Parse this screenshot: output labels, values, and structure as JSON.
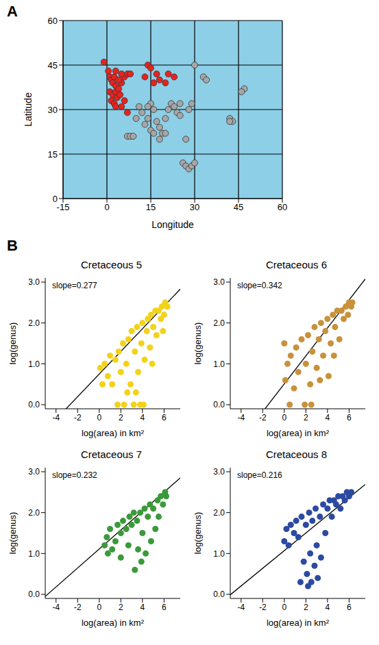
{
  "chart_data": [
    {
      "type": "scatter",
      "panel": "A",
      "xlabel": "Longitude",
      "ylabel": "Latitude",
      "xlim": [
        -15,
        60
      ],
      "ylim": [
        0,
        60
      ],
      "xticks": [
        -15,
        0,
        15,
        30,
        45,
        60
      ],
      "yticks": [
        0,
        15,
        30,
        45,
        60
      ],
      "grid": true,
      "series": [
        {
          "color": "#e8231e",
          "marker": "circle",
          "x": [
            -1,
            0.5,
            1,
            1.5,
            2,
            2.5,
            3,
            1,
            2,
            3,
            4,
            5,
            1.5,
            2.5,
            3.5,
            4.5,
            3,
            6,
            7,
            5,
            6,
            7,
            8,
            4,
            13,
            14,
            15,
            17,
            18,
            20,
            21,
            23,
            16,
            3,
            5
          ],
          "values": [
            46,
            43,
            41,
            40,
            39,
            41,
            38,
            36,
            35,
            36,
            37,
            39,
            33,
            32,
            34,
            35,
            31,
            33,
            29,
            31,
            41,
            42,
            42,
            40,
            41,
            45,
            44,
            42,
            40,
            39,
            42,
            41,
            39,
            43,
            42
          ]
        },
        {
          "color": "#a6a6a6",
          "marker": "circle",
          "x": [
            30,
            15,
            16,
            14,
            13,
            15,
            17,
            18,
            19,
            20,
            21,
            22,
            23,
            24,
            25,
            25,
            28,
            29,
            18,
            16,
            7,
            8,
            9,
            27,
            26,
            27,
            28,
            29,
            30,
            33,
            34,
            42,
            43,
            42,
            47,
            46,
            11,
            12,
            14,
            10,
            20
          ],
          "values": [
            45,
            32,
            30,
            27,
            25,
            23,
            26,
            24,
            22,
            27,
            30,
            32,
            31,
            29,
            28,
            32,
            30,
            32,
            20,
            22,
            21,
            21,
            21,
            20,
            12,
            11,
            10,
            11,
            12,
            41,
            40,
            27,
            26,
            26,
            37,
            36,
            31,
            29,
            31,
            27,
            22
          ]
        }
      ]
    },
    {
      "type": "scatter",
      "panel": "B",
      "title": "Cretaceous 5",
      "annotation": "slope=0.277",
      "xlabel": "log(area) in km²",
      "ylabel": "log(genus)",
      "xlim": [
        -5,
        7.5
      ],
      "ylim": [
        -0.1,
        3.1
      ],
      "xticks": [
        -4,
        -2,
        0,
        2,
        4,
        6
      ],
      "yticks": [
        {
          "value": 0,
          "label": "0.0"
        },
        {
          "value": 1,
          "label": "1.0"
        },
        {
          "value": 2,
          "label": "2.0"
        },
        {
          "value": 3,
          "label": "3.0"
        }
      ],
      "grid": false,
      "fit": {
        "slope": 0.277,
        "intercept": 0.75
      },
      "series": [
        {
          "color": "#f2d319",
          "marker": "circle",
          "x": [
            0.1,
            0.3,
            0.5,
            0.8,
            1.0,
            1.2,
            1.5,
            1.7,
            1.8,
            2.0,
            2.2,
            2.3,
            2.5,
            2.7,
            2.9,
            3.0,
            3.2,
            3.3,
            3.5,
            3.6,
            3.8,
            3.9,
            4.0,
            4.1,
            4.2,
            4.4,
            4.5,
            4.7,
            4.8,
            5.0,
            5.2,
            5.3,
            5.5,
            5.7,
            5.8,
            6.0,
            6.1,
            6.3,
            5.9,
            4.9,
            3.4,
            2.6
          ],
          "values": [
            0.9,
            0.5,
            1.0,
            0.7,
            1.2,
            0.5,
            1.1,
            0,
            1.3,
            0.8,
            1.5,
            0,
            1.0,
            1.6,
            0.5,
            1.8,
            0,
            1.3,
            1.9,
            0.8,
            0,
            1.5,
            2.0,
            0,
            1.1,
            1.8,
            2.1,
            1.4,
            2.2,
            1.9,
            2.3,
            1.7,
            2.3,
            2.1,
            2.4,
            2.2,
            2.5,
            2.4,
            1.8,
            1.0,
            0.3,
            0.3
          ]
        }
      ]
    },
    {
      "type": "scatter",
      "title": "Cretaceous 6",
      "annotation": "slope=0.342",
      "xlabel": "log(area) in km²",
      "ylabel": "log(genus)",
      "xlim": [
        -5,
        7.5
      ],
      "ylim": [
        -0.1,
        3.1
      ],
      "xticks": [
        -4,
        -2,
        0,
        2,
        4,
        6
      ],
      "yticks": [
        {
          "value": 0,
          "label": "0.0"
        },
        {
          "value": 1,
          "label": "1.0"
        },
        {
          "value": 2,
          "label": "2.0"
        },
        {
          "value": 3,
          "label": "3.0"
        }
      ],
      "grid": false,
      "fit": {
        "slope": 0.342,
        "intercept": 0.51
      },
      "series": [
        {
          "color": "#c8923a",
          "marker": "circle",
          "x": [
            0,
            0.1,
            0.3,
            0.5,
            0.6,
            0.9,
            1.1,
            1.3,
            1.6,
            1.9,
            2.0,
            2.2,
            2.4,
            2.5,
            2.6,
            2.8,
            3.0,
            3.2,
            3.4,
            3.6,
            3.8,
            4.0,
            4.1,
            4.3,
            4.5,
            4.7,
            4.9,
            5.1,
            5.3,
            5.5,
            5.7,
            5.9,
            6.0,
            6.2,
            6.3,
            4.6,
            3.3
          ],
          "values": [
            1.5,
            0.6,
            1.0,
            0,
            1.2,
            0.4,
            1.4,
            0.8,
            1.6,
            0,
            1.0,
            1.7,
            0.5,
            0,
            1.3,
            1.9,
            0.9,
            1.6,
            2.0,
            1.2,
            1.8,
            2.1,
            0.7,
            1.5,
            2.2,
            1.9,
            2.3,
            1.6,
            2.3,
            2.1,
            2.4,
            2.2,
            2.5,
            2.4,
            2.5,
            1.2,
            0.6
          ]
        }
      ]
    },
    {
      "type": "scatter",
      "title": "Cretaceous 7",
      "annotation": "slope=0.232",
      "xlabel": "log(area) in km²",
      "ylabel": "log(genus)",
      "xlim": [
        -5,
        7.5
      ],
      "ylim": [
        -0.1,
        3.1
      ],
      "xticks": [
        -4,
        -2,
        0,
        2,
        4,
        6
      ],
      "yticks": [
        {
          "value": 0,
          "label": "0.0"
        },
        {
          "value": 1,
          "label": "1.0"
        },
        {
          "value": 2,
          "label": "2.0"
        },
        {
          "value": 3,
          "label": "3.0"
        }
      ],
      "grid": false,
      "fit": {
        "slope": 0.232,
        "intercept": 1.11
      },
      "series": [
        {
          "color": "#3a9a3a",
          "marker": "circle",
          "x": [
            0.5,
            0.7,
            0.8,
            1.0,
            1.2,
            1.5,
            1.7,
            2.0,
            2.0,
            2.2,
            2.5,
            2.7,
            2.8,
            3.0,
            3.2,
            3.3,
            3.5,
            3.6,
            3.8,
            4.0,
            4.2,
            4.3,
            4.5,
            4.7,
            4.8,
            5.0,
            5.2,
            5.4,
            5.5,
            5.7,
            5.9,
            6.1,
            6.2,
            3.9
          ],
          "values": [
            1.2,
            1.4,
            1.0,
            1.6,
            1.1,
            1.3,
            1.7,
            1.5,
            0.9,
            1.8,
            1.6,
            1.2,
            1.9,
            1.7,
            2.0,
            0.6,
            1.8,
            1.1,
            2.0,
            1.5,
            2.1,
            1.0,
            1.9,
            2.2,
            1.3,
            2.1,
            1.6,
            2.3,
            1.9,
            2.4,
            2.2,
            2.5,
            2.4,
            0.8
          ]
        }
      ]
    },
    {
      "type": "scatter",
      "title": "Cretaceous 8",
      "annotation": "slope=0.216",
      "xlabel": "log(area) in km²",
      "ylabel": "log(genus)",
      "xlim": [
        -5,
        7.5
      ],
      "ylim": [
        -0.1,
        3.1
      ],
      "xticks": [
        -4,
        -2,
        0,
        2,
        4,
        6
      ],
      "yticks": [
        {
          "value": 0,
          "label": "0.0"
        },
        {
          "value": 1,
          "label": "1.0"
        },
        {
          "value": 2,
          "label": "2.0"
        },
        {
          "value": 3,
          "label": "3.0"
        }
      ],
      "grid": false,
      "fit": {
        "slope": 0.216,
        "intercept": 1.07
      },
      "series": [
        {
          "color": "#2b4aa0",
          "marker": "circle",
          "x": [
            0,
            0.2,
            0.4,
            0.6,
            0.9,
            1.1,
            1.3,
            1.5,
            1.6,
            1.8,
            2.0,
            2.1,
            2.3,
            2.4,
            2.5,
            2.6,
            2.8,
            2.9,
            3.0,
            3.1,
            3.3,
            3.4,
            3.6,
            3.8,
            4.0,
            4.2,
            4.4,
            4.6,
            4.8,
            5.0,
            5.2,
            5.4,
            5.6,
            5.8,
            6.0,
            6.2,
            2.2
          ],
          "values": [
            1.3,
            1.6,
            1.2,
            1.7,
            1.5,
            1.8,
            1.4,
            0.3,
            1.9,
            0.8,
            1.7,
            0.5,
            2.0,
            1.0,
            0.3,
            1.8,
            0.7,
            2.1,
            1.2,
            0.4,
            1.9,
            0.9,
            2.2,
            1.5,
            2.1,
            2.3,
            1.9,
            2.3,
            2.2,
            2.4,
            2.1,
            2.4,
            2.3,
            2.5,
            2.4,
            2.5,
            0.2
          ]
        }
      ]
    }
  ]
}
